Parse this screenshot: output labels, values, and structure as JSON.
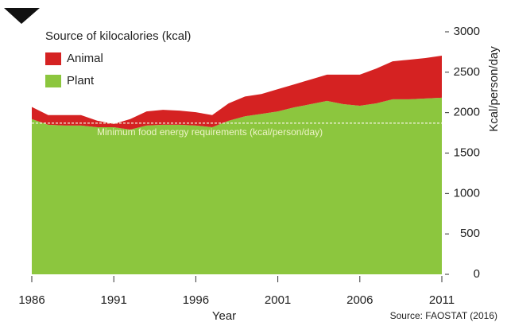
{
  "chart_data": {
    "type": "stacked_area",
    "legend_title": "Source of kilocalories (kcal)",
    "x_label": "Year",
    "y_label": "Kcal/person/day",
    "source": "Source: FAOSTAT (2016)",
    "x": [
      1986,
      1987,
      1988,
      1989,
      1990,
      1991,
      1992,
      1993,
      1994,
      1995,
      1996,
      1997,
      1998,
      1999,
      2000,
      2001,
      2002,
      2003,
      2004,
      2005,
      2006,
      2007,
      2008,
      2009,
      2010,
      2011
    ],
    "series": [
      {
        "name": "Plant",
        "color": "#8cc63e",
        "values": [
          1920,
          1850,
          1840,
          1840,
          1820,
          1820,
          1790,
          1840,
          1850,
          1850,
          1840,
          1820,
          1900,
          1955,
          1985,
          2015,
          2065,
          2105,
          2145,
          2105,
          2085,
          2115,
          2165,
          2165,
          2175,
          2185
        ]
      },
      {
        "name": "Animal",
        "color": "#d52222",
        "values": [
          150,
          120,
          130,
          130,
          80,
          40,
          130,
          175,
          185,
          175,
          165,
          150,
          215,
          245,
          245,
          275,
          285,
          305,
          325,
          365,
          385,
          430,
          470,
          490,
          500,
          520
        ]
      }
    ],
    "reference_line": {
      "value": 1870,
      "label": "Minimum food energy requirements (kcal/person/day)"
    },
    "xlim": [
      1986,
      2011
    ],
    "xticks": [
      1986,
      1991,
      1996,
      2001,
      2006,
      2011
    ],
    "ylim": [
      0,
      3000
    ],
    "yticks": [
      0,
      500,
      1000,
      1500,
      2000,
      2500,
      3000
    ],
    "legend": "top-left"
  }
}
